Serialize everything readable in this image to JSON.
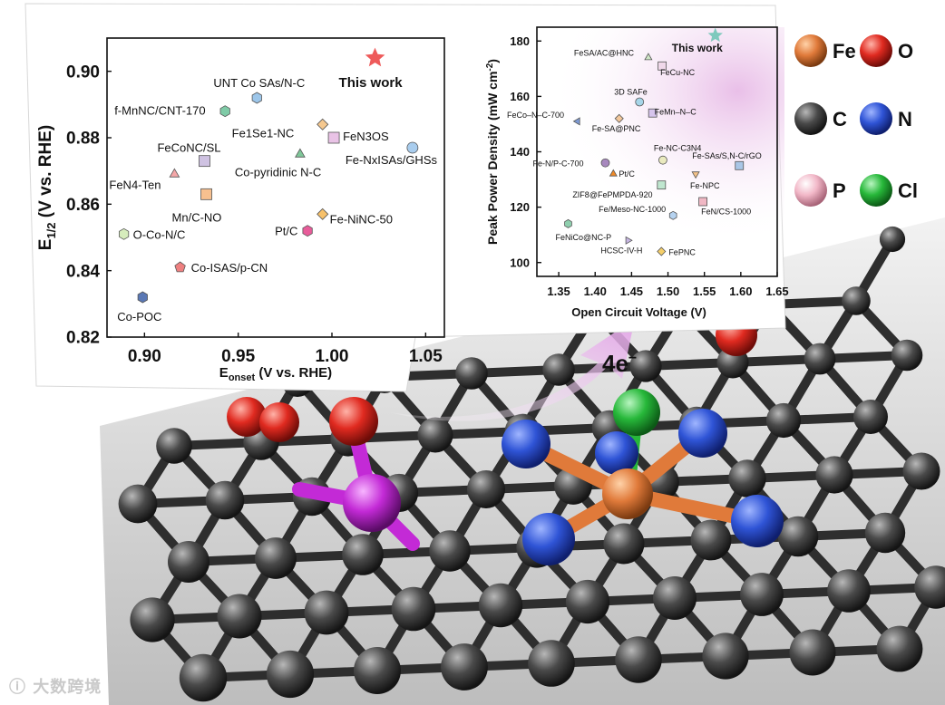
{
  "chart_data": [
    {
      "type": "scatter",
      "xlabel_main": "E",
      "xlabel_sub": "onset",
      "xlabel_rest": " (V vs. RHE)",
      "ylabel_main": "E",
      "ylabel_sub": "1/2",
      "ylabel_rest": " (V vs. RHE)",
      "xlim": [
        0.88,
        1.06
      ],
      "ylim": [
        0.82,
        0.91
      ],
      "xticks": [
        "0.90",
        "0.95",
        "1.00",
        "1.05"
      ],
      "yticks": [
        "0.82",
        "0.84",
        "0.86",
        "0.88",
        "0.90"
      ],
      "points": [
        {
          "label": "This work",
          "x": 1.023,
          "y": 0.904,
          "marker": "star",
          "color": "#ee5a5a",
          "highlight": true
        },
        {
          "label": "UNT Co SAs/N-C",
          "x": 0.96,
          "y": 0.892,
          "marker": "hex",
          "color": "#9cc6ea"
        },
        {
          "label": "f-MnNC/CNT-170",
          "x": 0.943,
          "y": 0.888,
          "marker": "hex",
          "color": "#7fcba7"
        },
        {
          "label": "Fe1Se1-NC",
          "x": 0.995,
          "y": 0.884,
          "marker": "diamond",
          "color": "#f5c88f"
        },
        {
          "label": "FeN3OS",
          "x": 1.001,
          "y": 0.88,
          "marker": "square",
          "color": "#e9c3e6"
        },
        {
          "label": "Fe-NxISAs/GHSs",
          "x": 1.043,
          "y": 0.877,
          "marker": "circle",
          "color": "#a9cdee"
        },
        {
          "label": "FeCoNC/SL",
          "x": 0.932,
          "y": 0.873,
          "marker": "square",
          "color": "#cfc2e2"
        },
        {
          "label": "Co-pyridinic N-C",
          "x": 0.983,
          "y": 0.875,
          "marker": "triangle",
          "color": "#7fc799"
        },
        {
          "label": "FeN4-Ten",
          "x": 0.916,
          "y": 0.869,
          "marker": "triangle",
          "color": "#f5a7a8"
        },
        {
          "label": "Mn/C-NO",
          "x": 0.933,
          "y": 0.863,
          "marker": "square",
          "color": "#f7c08f"
        },
        {
          "label": "Fe-NiNC-50",
          "x": 0.995,
          "y": 0.857,
          "marker": "diamond",
          "color": "#f7c16a"
        },
        {
          "label": "Pt/C",
          "x": 0.987,
          "y": 0.852,
          "marker": "hex",
          "color": "#e85c9a"
        },
        {
          "label": "O-Co-N/C",
          "x": 0.889,
          "y": 0.851,
          "marker": "hex",
          "color": "#d6ecbc"
        },
        {
          "label": "Co-ISAS/p-CN",
          "x": 0.919,
          "y": 0.841,
          "marker": "pentagon",
          "color": "#ee8080"
        },
        {
          "label": "Co-POC",
          "x": 0.899,
          "y": 0.832,
          "marker": "hex",
          "color": "#5a78b5"
        }
      ]
    },
    {
      "type": "scatter",
      "xlabel": "Open Circuit Voltage (V)",
      "ylabel_main": "Peak Power Density (mW cm",
      "ylabel_sup": "-2",
      "ylabel_rest": ")",
      "xlim": [
        1.32,
        1.65
      ],
      "ylim": [
        95,
        185
      ],
      "xticks": [
        "1.35",
        "1.40",
        "1.45",
        "1.50",
        "1.55",
        "1.60",
        "1.65"
      ],
      "yticks": [
        "100",
        "120",
        "140",
        "160",
        "180"
      ],
      "points": [
        {
          "label": "This work",
          "x": 1.565,
          "y": 182,
          "marker": "star",
          "color": "#7fc9bd",
          "highlight": true
        },
        {
          "label": "FeSA/AC@HNC",
          "x": 1.473,
          "y": 174,
          "marker": "triangle",
          "color": "#cfe6c6"
        },
        {
          "label": "FeCu-NC",
          "x": 1.492,
          "y": 171,
          "marker": "square",
          "color": "#f0d8ea"
        },
        {
          "label": "3D SAFe",
          "x": 1.461,
          "y": 158,
          "marker": "circle",
          "color": "#a6d5e8"
        },
        {
          "label": "FeCo–N–C-700",
          "x": 1.376,
          "y": 151,
          "marker": "tri-left",
          "color": "#7d9ad6"
        },
        {
          "label": "FeMn–N–C",
          "x": 1.479,
          "y": 154,
          "marker": "square",
          "color": "#d6c4ec"
        },
        {
          "label": "Fe-SA@PNC",
          "x": 1.433,
          "y": 152,
          "marker": "diamond",
          "color": "#f3c79b"
        },
        {
          "label": "Fe-NC-C3N4",
          "x": 1.493,
          "y": 137,
          "marker": "circle",
          "color": "#eaeabf"
        },
        {
          "label": "Fe-N/P-C-700",
          "x": 1.414,
          "y": 136,
          "marker": "circle",
          "color": "#a788be"
        },
        {
          "label": "Pt/C",
          "x": 1.425,
          "y": 132,
          "marker": "triangle",
          "color": "#f08a27"
        },
        {
          "label": "Fe-NPC",
          "x": 1.538,
          "y": 132,
          "marker": "tri-down",
          "color": "#f3c187"
        },
        {
          "label": "Fe-SAs/S,N-C/rGO",
          "x": 1.598,
          "y": 135,
          "marker": "square",
          "color": "#a9c6e6"
        },
        {
          "label": "ZIF8@FePMPDA-920",
          "x": 1.491,
          "y": 128,
          "marker": "square",
          "color": "#bfe6cf"
        },
        {
          "label": "FeN/CS-1000",
          "x": 1.548,
          "y": 122,
          "marker": "square",
          "color": "#f0b7c4"
        },
        {
          "label": "Fe/Meso-NC-1000",
          "x": 1.507,
          "y": 117,
          "marker": "hex",
          "color": "#b6d3f0"
        },
        {
          "label": "FeNiCo@NC-P",
          "x": 1.363,
          "y": 114,
          "marker": "hex",
          "color": "#8fcfae"
        },
        {
          "label": "HCSC-IV-H",
          "x": 1.445,
          "y": 108,
          "marker": "tri-right",
          "color": "#c6b6e2"
        },
        {
          "label": "FePNC",
          "x": 1.491,
          "y": 104,
          "marker": "diamond",
          "color": "#f5cf6a"
        }
      ]
    }
  ],
  "legend_elements": [
    {
      "symbol": "Fe",
      "color": "#e07a3a"
    },
    {
      "symbol": "O",
      "color": "#e02a20"
    },
    {
      "symbol": "C",
      "color": "#8c8c8c"
    },
    {
      "symbol": "N",
      "color": "#2f54d6"
    },
    {
      "symbol": "P",
      "color": "#f2b8c8"
    },
    {
      "symbol": "Cl",
      "color": "#27b83a"
    }
  ],
  "reaction_label": "4e",
  "reaction_sup": "−",
  "watermark": "大数跨境"
}
